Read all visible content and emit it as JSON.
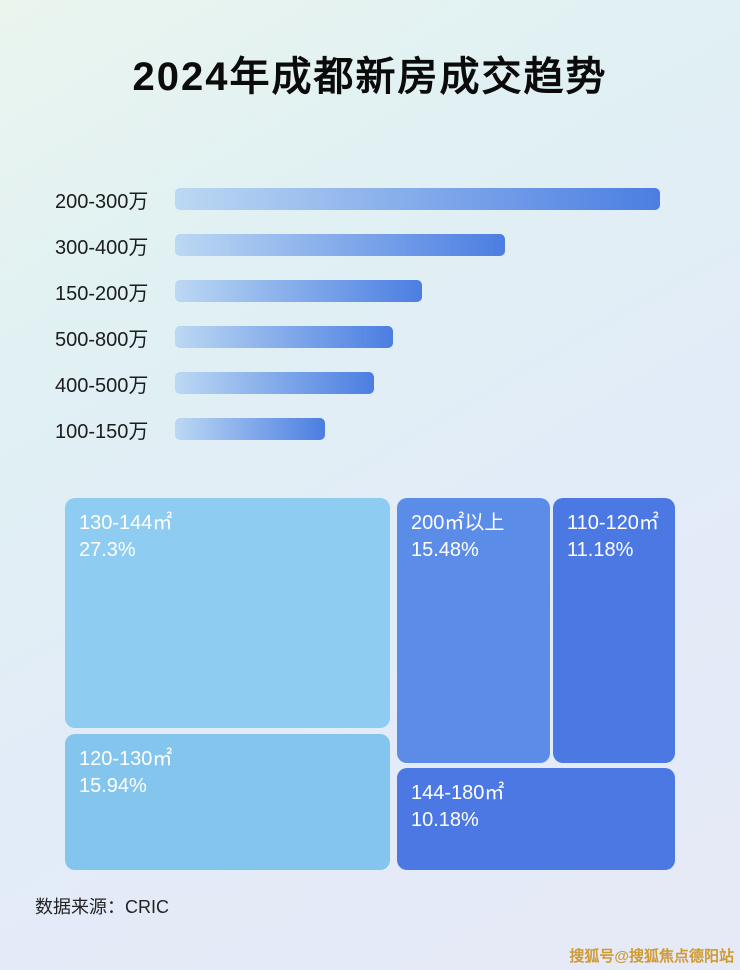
{
  "title": "2024年成都新房成交趋势",
  "source": "数据来源：CRIC",
  "watermark": "搜狐号@搜狐焦点德阳站",
  "chart_data": [
    {
      "type": "bar",
      "orientation": "horizontal",
      "title": "",
      "categories": [
        "200-300万",
        "300-400万",
        "150-200万",
        "500-800万",
        "400-500万",
        "100-150万"
      ],
      "values": [
        100,
        68,
        51,
        45,
        41,
        31
      ],
      "value_note": "bars carry no printed numbers; values are relative bar lengths as % of the longest bar",
      "xlabel": "",
      "ylabel": "",
      "grid": false,
      "legend": false,
      "bar_gradient": [
        "#bcd8f3",
        "#4b7ee2"
      ]
    },
    {
      "type": "treemap",
      "title": "",
      "blocks": [
        {
          "label": "130-144㎡",
          "value_pct": 27.3,
          "value_text": "27.3%",
          "color": "#8fccf1"
        },
        {
          "label": "200㎡以上",
          "value_pct": 15.48,
          "value_text": "15.48%",
          "color": "#5b8ce8"
        },
        {
          "label": "110-120㎡",
          "value_pct": 11.18,
          "value_text": "11.18%",
          "color": "#4c78e3"
        },
        {
          "label": "120-130㎡",
          "value_pct": 15.94,
          "value_text": "15.94%",
          "color": "#84c5ee"
        },
        {
          "label": "144-180㎡",
          "value_pct": 10.18,
          "value_text": "10.18%",
          "color": "#4c78e4"
        }
      ]
    }
  ]
}
